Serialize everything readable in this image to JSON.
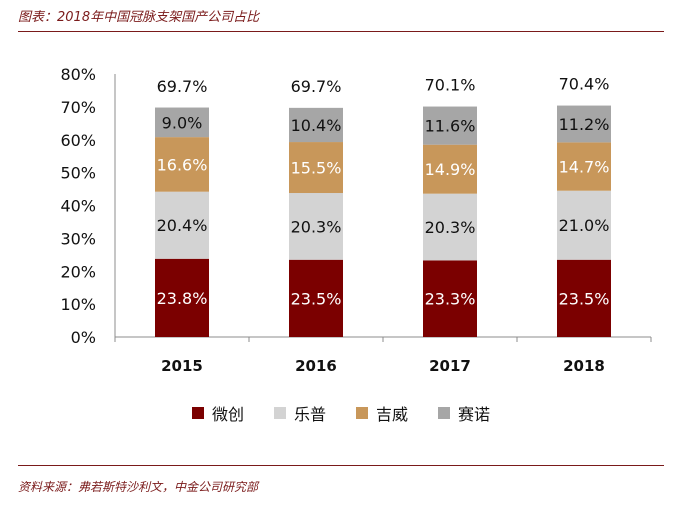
{
  "header": {
    "title": "图表：2018年中国冠脉支架国产公司占比"
  },
  "footer": {
    "source": "资料来源：弗若斯特沙利文，中金公司研究部"
  },
  "colors": {
    "微创": "#7b0000",
    "乐普": "#d3d3d3",
    "吉威": "#c8975a",
    "赛诺": "#a6a6a6",
    "accent": "#7a1a1a"
  },
  "chart_data": {
    "type": "bar",
    "stacked": true,
    "title": "2018年中国冠脉支架国产公司占比",
    "categories": [
      "2015",
      "2016",
      "2017",
      "2018"
    ],
    "series": [
      {
        "name": "微创",
        "values": [
          23.8,
          23.5,
          23.3,
          23.5
        ],
        "labels": [
          "23.8%",
          "23.5%",
          "23.3%",
          "23.5%"
        ]
      },
      {
        "name": "乐普",
        "values": [
          20.4,
          20.3,
          20.3,
          21.0
        ],
        "labels": [
          "20.4%",
          "20.3%",
          "20.3%",
          "21.0%"
        ]
      },
      {
        "name": "吉威",
        "values": [
          16.6,
          15.5,
          14.9,
          14.7
        ],
        "labels": [
          "16.6%",
          "15.5%",
          "14.9%",
          "14.7%"
        ]
      },
      {
        "name": "赛诺",
        "values": [
          9.0,
          10.4,
          11.6,
          11.2
        ],
        "labels": [
          "9.0%",
          "10.4%",
          "11.6%",
          "11.2%"
        ]
      }
    ],
    "totals": [
      69.7,
      69.7,
      70.1,
      70.4
    ],
    "total_labels": [
      "69.7%",
      "69.7%",
      "70.1%",
      "70.4%"
    ],
    "ylim": [
      0,
      80
    ],
    "yticks": [
      "0%",
      "10%",
      "20%",
      "30%",
      "40%",
      "50%",
      "60%",
      "70%",
      "80%"
    ],
    "xlabel": "",
    "ylabel": "",
    "legend_position": "bottom"
  }
}
